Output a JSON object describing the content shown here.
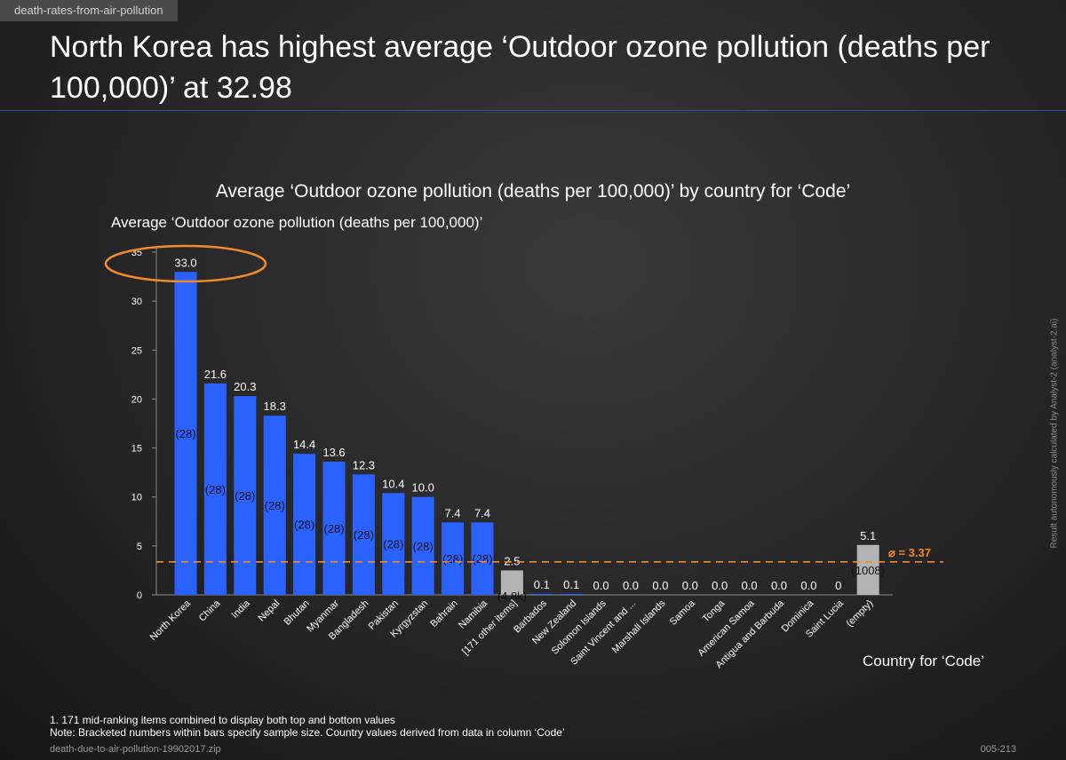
{
  "tag": "death-rates-from-air-pollution",
  "headline": "North Korea has highest average ‘Outdoor ozone pollution (deaths per 100,000)’ at 32.98",
  "side_note": "Result autonomously calculated by Analyst-2 (analyst-2.ai)",
  "footnote_1": "1. 171 mid-ranking items combined to display both top and bottom values",
  "footnote_2": "Note: Bracketed numbers within bars specify sample size.   Country values derived from data in column ‘Code’",
  "source": "death-due-to-air-pollution-19902017.zip",
  "page_number": "005-213",
  "colors": {
    "bar": "#2a62ff",
    "bar_grey": "#b3b3b3",
    "mean_line": "#f08a2c",
    "highlight": "#f08a2c"
  },
  "chart_data": {
    "type": "bar",
    "title": "Average ‘Outdoor ozone pollution (deaths per 100,000)’ by country for ‘Code’",
    "xlabel": "Country for ‘Code’",
    "ylabel": "Average ‘Outdoor ozone pollution (deaths per 100,000)’",
    "ylim": [
      0,
      35
    ],
    "yticks": [
      0,
      5,
      10,
      15,
      20,
      25,
      30,
      35
    ],
    "grid": false,
    "categories": [
      "North Korea",
      "China",
      "India",
      "Nepal",
      "Bhutan",
      "Myanmar",
      "Bangladesh",
      "Pakistan",
      "Kyrgyzstan",
      "Bahrain",
      "Namibia",
      "[171 other items]",
      "Barbados",
      "New Zealand",
      "Solomon Islands",
      "Saint Vincent and ...",
      "Marshall Islands",
      "Samoa",
      "Tonga",
      "American Samoa",
      "Antigua and Barbuda",
      "Dominica",
      "Saint Lucia",
      "(empty)"
    ],
    "values": [
      32.98,
      21.6,
      20.3,
      18.3,
      14.4,
      13.6,
      12.3,
      10.4,
      10.0,
      7.4,
      7.4,
      2.5,
      0.1,
      0.1,
      0.0,
      0.0,
      0.0,
      0.0,
      0.0,
      0.0,
      0.0,
      0.0,
      0.0,
      5.1
    ],
    "value_labels": [
      "33.0",
      "21.6",
      "20.3",
      "18.3",
      "14.4",
      "13.6",
      "12.3",
      "10.4",
      "10.0",
      "7.4",
      "7.4",
      "2.5",
      "0.1",
      "0.1",
      "0.0",
      "0.0",
      "0.0",
      "0.0",
      "0.0",
      "0.0",
      "0.0",
      "0.0",
      "0",
      "5.1"
    ],
    "sample_sizes": [
      "(28)",
      "(28)",
      "(28)",
      "(28)",
      "(28)",
      "(28)",
      "(28)",
      "(28)",
      "(28)",
      "(28)",
      "(28)",
      "(4.8k)",
      "",
      "",
      "",
      "",
      "",
      "",
      "",
      "",
      "",
      "",
      "",
      "(1008)"
    ],
    "grey_bars": [
      "[171 other items]",
      "(empty)"
    ],
    "mean": 3.37,
    "mean_label": "⌀ = 3.37",
    "highlighted": "North Korea"
  }
}
